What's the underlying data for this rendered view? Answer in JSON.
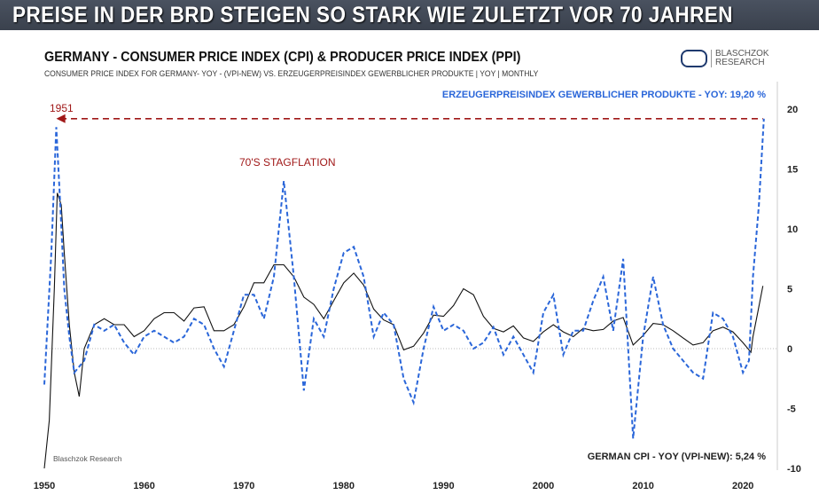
{
  "banner": "PREISE IN DER BRD STEIGEN SO STARK WIE ZULETZT VOR 70 JAHREN",
  "logo": {
    "line1": "BLASCHZOK",
    "line2": "RESEARCH"
  },
  "watermark": "Blaschzok Research",
  "chart_data": {
    "type": "line",
    "title": "GERMANY - CONSUMER PRICE INDEX (CPI) & PRODUCER PRICE INDEX (PPI)",
    "subtitle": "CONSUMER PRICE INDEX FOR GERMANY- YOY - (VPI-NEW) VS. ERZEUGERPREISINDEX GEWERBLICHER PRODUKTE  | YOY | MONTHLY",
    "xlim": [
      1950,
      2023
    ],
    "ylim": [
      -10,
      20
    ],
    "x_ticks": [
      1950,
      1960,
      1970,
      1980,
      1990,
      2000,
      2010,
      2020
    ],
    "y_ticks": [
      20,
      15,
      10,
      5,
      0,
      -5,
      -10
    ],
    "annotations": {
      "year_1951": "1951",
      "stagflation": "70'S STAGFLATION",
      "reference_level": 19.2
    },
    "series": [
      {
        "name": "CPI",
        "label": "GERMAN CPI - YOY (VPI-NEW): 5,24 %",
        "color": "#111111",
        "style": "solid",
        "x": [
          1950,
          1950.5,
          1951,
          1951.3,
          1951.7,
          1952,
          1952.5,
          1953,
          1953.5,
          1954,
          1955,
          1956,
          1957,
          1958,
          1959,
          1960,
          1961,
          1962,
          1963,
          1964,
          1965,
          1966,
          1967,
          1968,
          1969,
          1970,
          1971,
          1972,
          1973,
          1974,
          1975,
          1976,
          1977,
          1978,
          1979,
          1980,
          1981,
          1982,
          1983,
          1984,
          1985,
          1986,
          1987,
          1988,
          1989,
          1990,
          1991,
          1992,
          1993,
          1994,
          1995,
          1996,
          1997,
          1998,
          1999,
          2000,
          2001,
          2002,
          2003,
          2004,
          2005,
          2006,
          2007,
          2008,
          2009,
          2010,
          2011,
          2012,
          2013,
          2014,
          2015,
          2016,
          2017,
          2018,
          2019,
          2020,
          2020.8,
          2021,
          2021.5,
          2022
        ],
        "y": [
          -10,
          -6,
          5,
          13,
          12,
          8,
          2,
          -2,
          -4,
          0,
          2,
          2.5,
          2,
          2,
          1,
          1.5,
          2.5,
          3,
          3,
          2.3,
          3.4,
          3.5,
          1.5,
          1.5,
          2,
          3.5,
          5.5,
          5.5,
          7,
          7,
          6,
          4.3,
          3.7,
          2.5,
          4,
          5.5,
          6.3,
          5.3,
          3.3,
          2.4,
          2,
          -0.1,
          0.2,
          1.3,
          2.8,
          2.7,
          3.6,
          5,
          4.5,
          2.7,
          1.7,
          1.4,
          1.9,
          0.9,
          0.6,
          1.4,
          2,
          1.4,
          1,
          1.7,
          1.5,
          1.6,
          2.3,
          2.6,
          0.3,
          1.1,
          2.1,
          2,
          1.5,
          0.9,
          0.3,
          0.5,
          1.5,
          1.8,
          1.4,
          0.5,
          -0.3,
          1,
          3.1,
          5.24
        ]
      },
      {
        "name": "PPI",
        "label": "ERZEUGERPREISINDEX GEWERBLICHER PRODUKTE - YOY: 19,20 %",
        "color": "#2a66d9",
        "style": "dashed",
        "x": [
          1950,
          1950.7,
          1951.2,
          1951.6,
          1952,
          1952.5,
          1953,
          1954,
          1955,
          1956,
          1957,
          1958,
          1959,
          1960,
          1961,
          1962,
          1963,
          1964,
          1965,
          1966,
          1967,
          1968,
          1969,
          1970,
          1971,
          1972,
          1973,
          1974,
          1975,
          1976,
          1977,
          1978,
          1979,
          1980,
          1981,
          1982,
          1983,
          1984,
          1985,
          1986,
          1987,
          1988,
          1989,
          1990,
          1991,
          1992,
          1993,
          1994,
          1995,
          1996,
          1997,
          1998,
          1999,
          2000,
          2001,
          2002,
          2003,
          2004,
          2005,
          2006,
          2007,
          2008,
          2009,
          2010,
          2011,
          2012,
          2013,
          2014,
          2015,
          2016,
          2017,
          2018,
          2019,
          2020,
          2020.6,
          2021,
          2021.6,
          2022.1
        ],
        "y": [
          -3,
          8,
          18.5,
          12,
          5,
          1,
          -2,
          -1,
          2,
          1.5,
          2,
          0.5,
          -0.5,
          1,
          1.5,
          1,
          0.5,
          1,
          2.5,
          2,
          0,
          -1.5,
          1.5,
          4.5,
          4.5,
          2.5,
          6,
          14,
          6,
          -3.5,
          2.5,
          1,
          5,
          8,
          8.5,
          6,
          1,
          3,
          2,
          -2.5,
          -4.5,
          0,
          3.5,
          1.5,
          2,
          1.5,
          0,
          0.5,
          1.8,
          -0.5,
          1,
          -0.5,
          -2,
          3,
          4.5,
          -0.5,
          1.5,
          1.5,
          4,
          6,
          1.5,
          7.5,
          -7.5,
          1,
          6,
          2,
          0,
          -1,
          -2,
          -2.5,
          3,
          2.5,
          1,
          -2,
          -1,
          6,
          12,
          19.2
        ]
      }
    ]
  }
}
